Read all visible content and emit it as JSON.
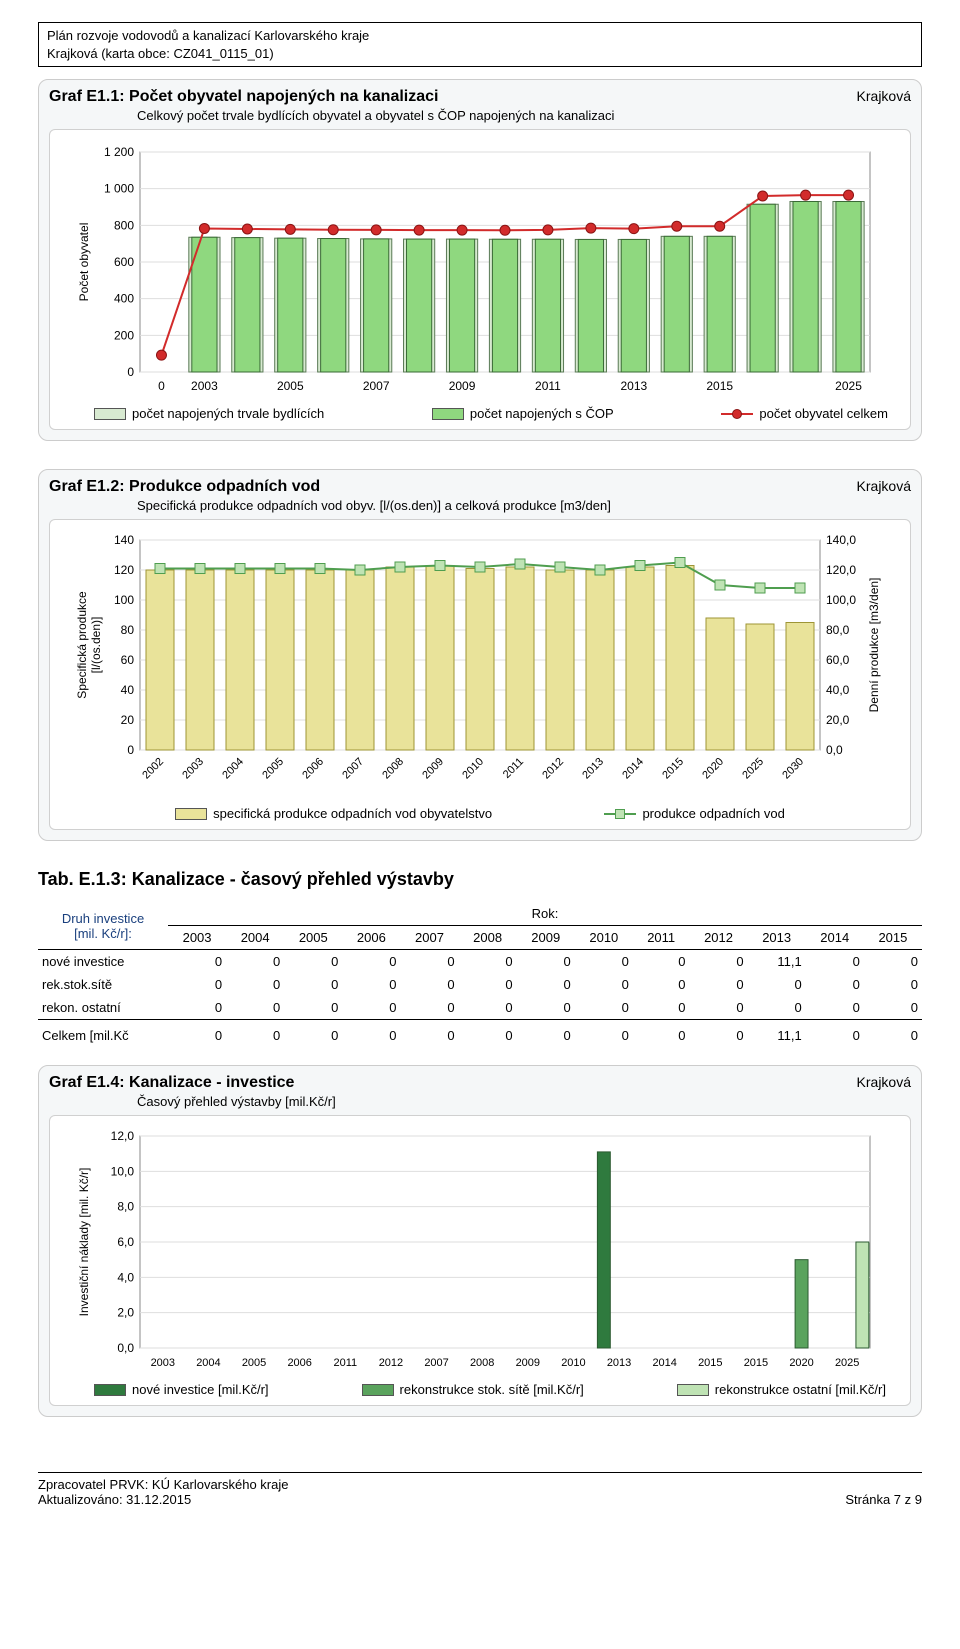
{
  "doc": {
    "header1": "Plán rozvoje vodovodů a kanalizací Karlovarského kraje",
    "header2": "Krajková (karta obce: CZ041_0115_01)",
    "footer_left1": "Zpracovatel PRVK: KÚ Karlovarského kraje",
    "footer_left2": "Aktualizováno: 31.12.2015",
    "footer_right": "Stránka 7 z 9"
  },
  "chart1": {
    "title": "Graf E1.1: Počet obyvatel napojených na kanalizaci",
    "right": "Krajková",
    "sub": "Celkový počet trvale bydlících obyvatel a obyvatel s ČOP napojených na kanalizaci",
    "yaxis_label": "Počet obyvatel",
    "yticks": [
      0,
      200,
      400,
      600,
      800,
      "1 000",
      "1 200"
    ],
    "ytick_vals": [
      0,
      200,
      400,
      600,
      800,
      1000,
      1200
    ],
    "ymax": 1200,
    "xticks": [
      0,
      2003,
      2005,
      2007,
      2009,
      2011,
      2013,
      2015,
      2025
    ],
    "pale_values": [
      0,
      735,
      733,
      730,
      728,
      726,
      725,
      725,
      724,
      724,
      723,
      723,
      740,
      740,
      915,
      930,
      930
    ],
    "green_values": [
      0,
      735,
      733,
      730,
      728,
      726,
      725,
      725,
      724,
      724,
      723,
      723,
      740,
      740,
      915,
      930,
      930
    ],
    "line_values": [
      92,
      783,
      780,
      778,
      776,
      775,
      774,
      774,
      773,
      775,
      785,
      782,
      795,
      795,
      960,
      965,
      965
    ],
    "colors": {
      "pale": "#d8ead1",
      "green": "#8fd87f",
      "line": "#d22b2b",
      "grid": "#dedede",
      "plot_bg": "#ffffff"
    },
    "legend": [
      "počet napojených trvale bydlících",
      "počet napojených s ČOP",
      "počet obyvatel celkem"
    ]
  },
  "chart2": {
    "title": "Graf E1.2: Produkce odpadních vod",
    "right": "Krajková",
    "sub": "Specifická produkce odpadních vod obyv. [l/(os.den)] a celková produkce [m3/den]",
    "y1_label": "Specifická produkce\n[l/(os.den)]",
    "y2_label": "Denní produkce [m3/den]",
    "y1_ticks": [
      0,
      20,
      40,
      60,
      80,
      100,
      120,
      140
    ],
    "y2_ticks": [
      "0,0",
      "20,0",
      "40,0",
      "60,0",
      "80,0",
      "100,0",
      "120,0",
      "140,0"
    ],
    "ymax": 140,
    "x_labels": [
      "2002",
      "2003",
      "2004",
      "2005",
      "2006",
      "2007",
      "2008",
      "2009",
      "2010",
      "2011",
      "2012",
      "2013",
      "2014",
      "2015",
      "2020",
      "2025",
      "2030"
    ],
    "bars": [
      120,
      120,
      120,
      120,
      120,
      120,
      122,
      123,
      121,
      122,
      120,
      120,
      122,
      123,
      88,
      84,
      85
    ],
    "line": [
      121,
      121,
      121,
      121,
      121,
      120,
      122,
      123,
      122,
      124,
      122,
      120,
      123,
      125,
      110,
      108,
      108
    ],
    "colors": {
      "bar": "#e9e39a",
      "line": "#4f9e4f",
      "square": "#bfe3b4",
      "grid": "#dedede"
    },
    "legend": [
      "specifická produkce odpadních vod obyvatelstvo",
      "produkce odpadních vod"
    ]
  },
  "table3": {
    "title": "Tab. E.1.3: Kanalizace - časový přehled výstavby",
    "head_left": "Druh investice\n[mil. Kč/r]:",
    "head_right": "Rok:",
    "years": [
      2003,
      2004,
      2005,
      2006,
      2007,
      2008,
      2009,
      2010,
      2011,
      2012,
      2013,
      2014,
      2015
    ],
    "rows": [
      {
        "label": "nové investice",
        "vals": [
          "0",
          "0",
          "0",
          "0",
          "0",
          "0",
          "0",
          "0",
          "0",
          "0",
          "11,1",
          "0",
          "0"
        ]
      },
      {
        "label": "rek.stok.sítě",
        "vals": [
          "0",
          "0",
          "0",
          "0",
          "0",
          "0",
          "0",
          "0",
          "0",
          "0",
          "0",
          "0",
          "0"
        ]
      },
      {
        "label": "rekon. ostatní",
        "vals": [
          "0",
          "0",
          "0",
          "0",
          "0",
          "0",
          "0",
          "0",
          "0",
          "0",
          "0",
          "0",
          "0"
        ]
      }
    ],
    "total": {
      "label": "Celkem [mil.Kč",
      "vals": [
        "0",
        "0",
        "0",
        "0",
        "0",
        "0",
        "0",
        "0",
        "0",
        "0",
        "11,1",
        "0",
        "0"
      ]
    }
  },
  "chart4": {
    "title": "Graf E1.4: Kanalizace - investice",
    "right": "Krajková",
    "sub": "Časový přehled výstavby [mil.Kč/r]",
    "yaxis_label": "Investiční náklady [mil. Kč/r]",
    "yticks": [
      "0,0",
      "2,0",
      "4,0",
      "6,0",
      "8,0",
      "10,0",
      "12,0"
    ],
    "ymax": 12,
    "x_labels": [
      "2003",
      "2004",
      "2005",
      "2006",
      "2011",
      "2012",
      "2007",
      "2008",
      "2009",
      "2010",
      "2013",
      "2014",
      "2015",
      "2015",
      "2020",
      "2025"
    ],
    "series": {
      "nove": [
        0,
        0,
        0,
        0,
        0,
        0,
        0,
        0,
        0,
        0,
        11.1,
        0,
        0,
        0,
        0,
        0
      ],
      "stok": [
        0,
        0,
        0,
        0,
        0,
        0,
        0,
        0,
        0,
        0,
        0,
        0,
        0,
        0,
        5.0,
        0
      ],
      "ost": [
        0,
        0,
        0,
        0,
        0,
        0,
        0,
        0,
        0,
        0,
        0,
        0,
        0,
        0,
        0,
        6.0
      ]
    },
    "colors": {
      "nove": "#2f7a3e",
      "stok": "#5aa35d",
      "ost": "#bfe3b4",
      "grid": "#dedede"
    },
    "legend": [
      "nové investice [mil.Kč/r]",
      "rekonstrukce stok. sítě [mil.Kč/r]",
      "rekonstrukce ostatní [mil.Kč/r]"
    ]
  }
}
